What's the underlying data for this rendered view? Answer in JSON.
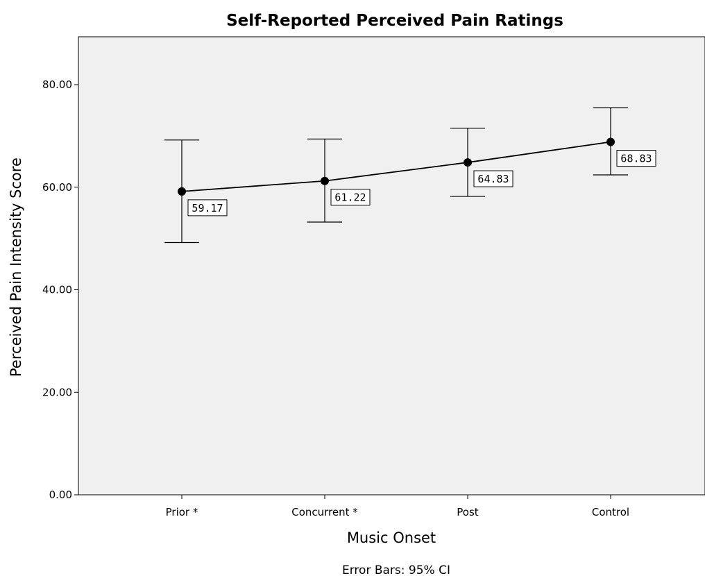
{
  "chart_data": {
    "type": "line",
    "title": "Self-Reported Perceived Pain Ratings",
    "xlabel": "Music Onset",
    "ylabel": "Perceived Pain Intensity Score",
    "footnote": "Error Bars: 95% CI",
    "categories": [
      "Prior *",
      "Concurrent *",
      "Post",
      "Control"
    ],
    "series": [
      {
        "values": [
          59.17,
          61.22,
          64.83,
          68.83
        ],
        "data_labels": [
          "59.17",
          "61.22",
          "64.83",
          "68.83"
        ],
        "ci_lower": [
          49.2,
          53.2,
          58.2,
          62.4
        ],
        "ci_upper": [
          69.2,
          69.4,
          71.5,
          75.5
        ]
      }
    ],
    "ylim": [
      0,
      80
    ],
    "yticks": [
      0,
      20,
      40,
      60,
      80
    ],
    "ytick_labels": [
      "0.00",
      "20.00",
      "40.00",
      "60.00",
      "80.00"
    ],
    "grid": false,
    "legend": "none",
    "colors": {
      "plot_background": "#f0f0f0",
      "line": "#000000",
      "marker": "#000000",
      "label_box": "#ffffff"
    }
  }
}
